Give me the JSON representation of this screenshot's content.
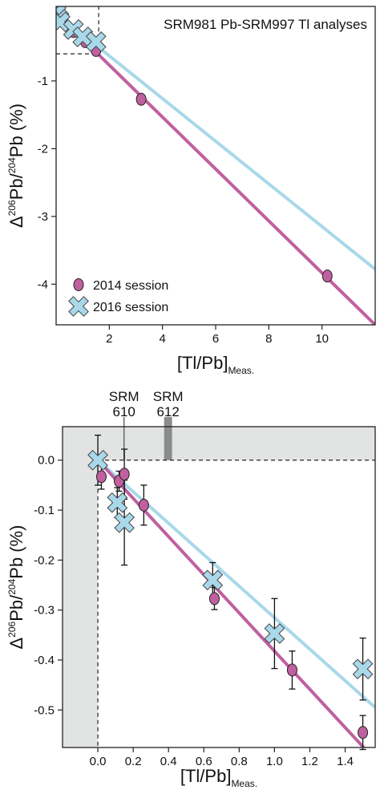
{
  "colors": {
    "series_2014": "#c060a0",
    "series_2016": "#a8d8ea",
    "axis": "#222222",
    "shade": "#e2e3e3",
    "ref_612": "#8a8b8d",
    "ref_610": "#666666"
  },
  "chart_data": [
    {
      "type": "scatter",
      "title": "SRM981 Pb-SRM997 Tl analyses",
      "xlabel": "[Tl/Pb]",
      "xlabel_sub": "Meas.",
      "ylabel": "Δ",
      "ylabel_sup1": "206",
      "ylabel_mid": "Pb/",
      "ylabel_sup2": "204",
      "ylabel_end": "Pb (%)",
      "xlim": [
        0,
        12
      ],
      "ylim": [
        -4.6,
        0.1
      ],
      "xticks": [
        2,
        4,
        6,
        8,
        10
      ],
      "yticks": [
        -1,
        -2,
        -3,
        -4
      ],
      "xtick_labels": [
        "2",
        "4",
        "6",
        "8",
        "10"
      ],
      "ytick_labels": [
        "-1",
        "-2",
        "-3",
        "-4"
      ],
      "guide_box": {
        "x": 1.6,
        "y": -0.6
      },
      "legend": {
        "position": "bottom-left",
        "entries": [
          "2014 session",
          "2016 session"
        ]
      },
      "series": [
        {
          "name": "2014 session",
          "marker": "ellipse",
          "fit": {
            "x0": 0,
            "y0": 0,
            "x1": 12,
            "y1": -4.6
          },
          "x": [
            0.02,
            0.05,
            0.12,
            0.15,
            0.26,
            0.65,
            1.1,
            1.5,
            3.2,
            10.2
          ],
          "y": [
            -0.03,
            -0.04,
            -0.04,
            -0.03,
            -0.09,
            -0.27,
            -0.42,
            -0.55,
            -1.27,
            -3.88
          ]
        },
        {
          "name": "2016 session",
          "marker": "x",
          "fit": {
            "x0": 0,
            "y0": 0,
            "x1": 12,
            "y1": -3.78
          },
          "x": [
            0.0,
            0.11,
            0.15,
            0.65,
            1.0,
            1.5
          ],
          "y": [
            0.0,
            -0.09,
            -0.13,
            -0.24,
            -0.35,
            -0.42
          ]
        }
      ]
    },
    {
      "type": "scatter",
      "xlabel": "[Tl/Pb]",
      "xlabel_sub": "Meas.",
      "ylabel": "Δ",
      "ylabel_sup1": "206",
      "ylabel_mid": "Pb/",
      "ylabel_sup2": "204",
      "ylabel_end": "Pb (%)",
      "xlim": [
        -0.2,
        1.57
      ],
      "ylim": [
        -0.575,
        0.067
      ],
      "xticks": [
        0.0,
        0.2,
        0.4,
        0.6,
        0.8,
        1.0,
        1.2,
        1.4
      ],
      "yticks": [
        0.0,
        -0.1,
        -0.2,
        -0.3,
        -0.4,
        -0.5
      ],
      "xtick_labels": [
        "0.0",
        "0.2",
        "0.4",
        "0.6",
        "0.8",
        "1.0",
        "1.2",
        "1.4"
      ],
      "ytick_labels": [
        "0.0",
        "-0.1",
        "-0.2",
        "-0.3",
        "-0.4",
        "-0.5"
      ],
      "reference_materials": [
        {
          "line1": "SRM",
          "line2": "610",
          "x_min": 0.148,
          "x_max": 0.148
        },
        {
          "line1": "SRM",
          "line2": "612",
          "x_min": 0.375,
          "x_max": 0.42
        }
      ],
      "series": [
        {
          "name": "2014 session",
          "marker": "ellipse",
          "fit": {
            "x0": 0,
            "y0": 0,
            "x1": 1.57,
            "y1": -0.6
          },
          "points": [
            {
              "x": 0.02,
              "y": -0.033,
              "err": 0.025
            },
            {
              "x": 0.12,
              "y": -0.042,
              "err": 0.02
            },
            {
              "x": 0.15,
              "y": -0.028,
              "err": 0.05
            },
            {
              "x": 0.26,
              "y": -0.09,
              "err": 0.04
            },
            {
              "x": 0.66,
              "y": -0.277,
              "err": 0.022
            },
            {
              "x": 1.1,
              "y": -0.42,
              "err": 0.038
            },
            {
              "x": 1.5,
              "y": -0.545,
              "err": 0.034
            }
          ]
        },
        {
          "name": "2016 session",
          "marker": "x",
          "fit": {
            "x0": 0,
            "y0": 0,
            "x1": 1.57,
            "y1": -0.495
          },
          "points": [
            {
              "x": 0.0,
              "y": 0.0,
              "err": 0.05
            },
            {
              "x": 0.11,
              "y": -0.085,
              "err": 0.03
            },
            {
              "x": 0.15,
              "y": -0.125,
              "err": 0.085
            },
            {
              "x": 0.65,
              "y": -0.24,
              "err": 0.035
            },
            {
              "x": 1.0,
              "y": -0.347,
              "err": 0.07
            },
            {
              "x": 1.5,
              "y": -0.418,
              "err": 0.062
            }
          ]
        }
      ]
    }
  ]
}
